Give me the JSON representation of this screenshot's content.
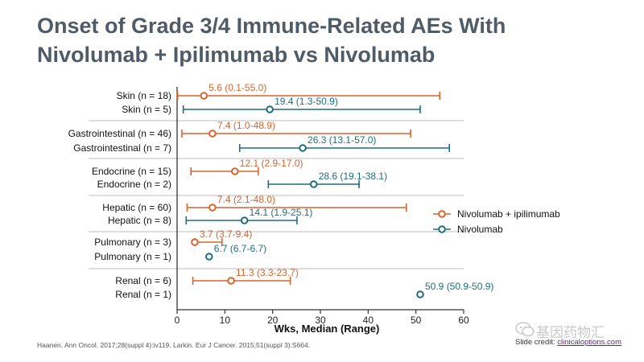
{
  "slide": {
    "title_line1": "Onset of Grade 3/4 Immune-Related AEs With",
    "title_line2": "Nivolumab + Ipilimumab vs Nivolumab",
    "reference": "Haanen. Ann Oncol. 2017;28(suppl 4):iv119. Larkin. Eur J Cancer. 2015;51(suppl 3):S664.",
    "credit_prefix": "Slide credit: ",
    "credit_link": "clinicaloptions.com",
    "watermark": "基因药物汇"
  },
  "chart_data": {
    "type": "forest",
    "xlabel": "Wks, Median (Range)",
    "xlim": [
      0,
      60
    ],
    "xticks": [
      0,
      10,
      20,
      30,
      40,
      50,
      60
    ],
    "legend_position": "right",
    "series": [
      {
        "name": "Nivolumab + ipilimumab",
        "color": "#d8642d"
      },
      {
        "name": "Nivolumab",
        "color": "#1e6e7f"
      }
    ],
    "rows": [
      {
        "label": "Skin (n = 18)",
        "series": 0,
        "median": 5.6,
        "low": 0.1,
        "high": 55.0,
        "annotation": "5.6 (0.1-55.0)"
      },
      {
        "label": "Skin (n = 5)",
        "series": 1,
        "median": 19.4,
        "low": 1.3,
        "high": 50.9,
        "annotation": "19.4 (1.3-50.9)"
      },
      {
        "label": "Gastrointestinal (n = 46)",
        "series": 0,
        "median": 7.4,
        "low": 1.0,
        "high": 48.9,
        "annotation": "7.4 (1.0-48.9)"
      },
      {
        "label": "Gastrointestinal (n = 7)",
        "series": 1,
        "median": 26.3,
        "low": 13.1,
        "high": 57.0,
        "annotation": "26.3 (13.1-57.0)"
      },
      {
        "label": "Endocrine (n = 15)",
        "series": 0,
        "median": 12.1,
        "low": 2.9,
        "high": 17.0,
        "annotation": "12.1 (2.9-17.0)"
      },
      {
        "label": "Endocrine (n = 2)",
        "series": 1,
        "median": 28.6,
        "low": 19.1,
        "high": 38.1,
        "annotation": "28.6 (19.1-38.1)"
      },
      {
        "label": "Hepatic (n = 60)",
        "series": 0,
        "median": 7.4,
        "low": 2.1,
        "high": 48.0,
        "annotation": "7.4 (2.1-48.0)"
      },
      {
        "label": "Hepatic (n = 8)",
        "series": 1,
        "median": 14.1,
        "low": 1.9,
        "high": 25.1,
        "annotation": "14.1 (1.9-25.1)"
      },
      {
        "label": "Pulmonary (n = 3)",
        "series": 0,
        "median": 3.7,
        "low": 3.7,
        "high": 9.4,
        "annotation": "3.7 (3.7-9.4)"
      },
      {
        "label": "Pulmonary (n = 1)",
        "series": 1,
        "median": 6.7,
        "low": 6.7,
        "high": 6.7,
        "annotation": "6.7 (6.7-6.7)"
      },
      {
        "label": "Renal (n = 6)",
        "series": 0,
        "median": 11.3,
        "low": 3.3,
        "high": 23.7,
        "annotation": "11.3 (3.3-23.7)"
      },
      {
        "label": "Renal (n = 1)",
        "series": 1,
        "median": 50.9,
        "low": 50.9,
        "high": 50.9,
        "annotation": "50.9 (50.9-50.9)"
      }
    ]
  }
}
